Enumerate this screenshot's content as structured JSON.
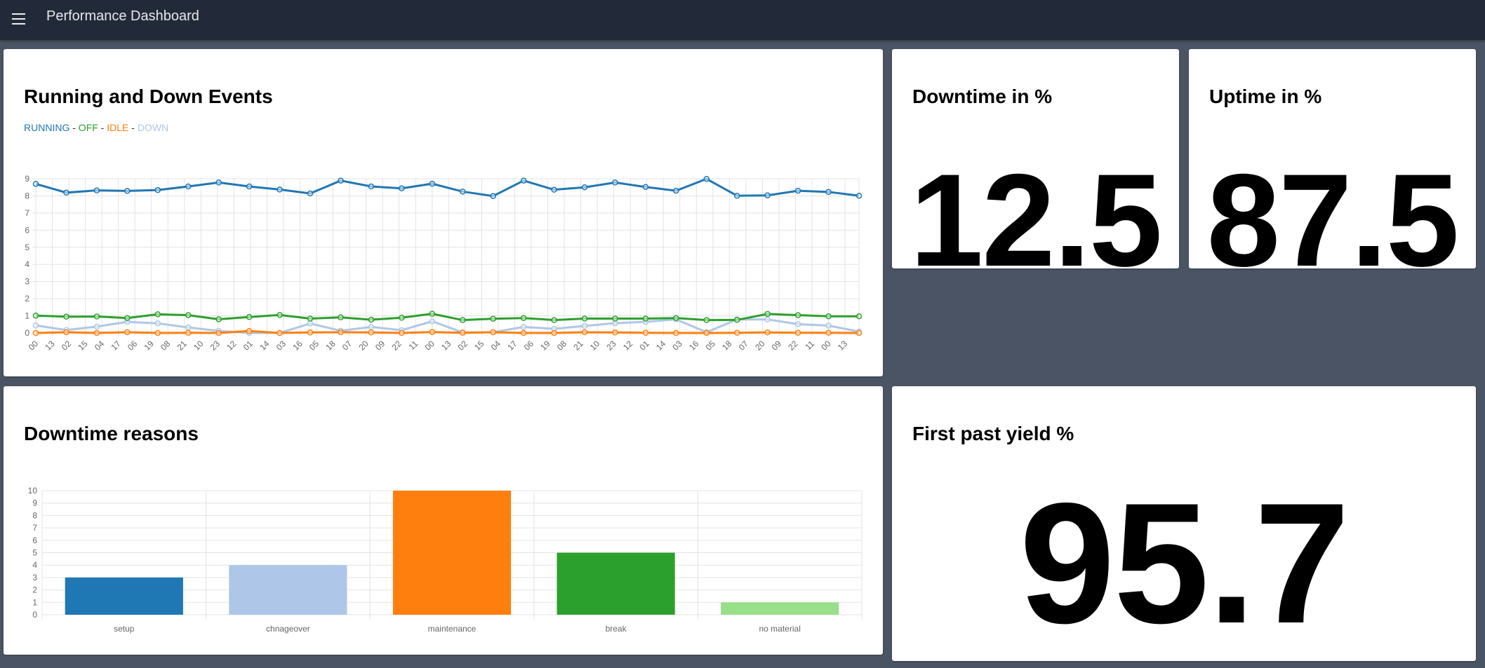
{
  "header": {
    "title": "Performance Dashboard",
    "menu_icon": "hamburger-menu-icon"
  },
  "colors": {
    "running": "#1f77b4",
    "off": "#2ca02c",
    "idle": "#ff7f0e",
    "down": "#aec7e8",
    "no_material": "#98df8a"
  },
  "events_card": {
    "title": "Running and Down Events",
    "legend": [
      {
        "label": "RUNNING",
        "color": "#1f77b4"
      },
      {
        "label": "OFF",
        "color": "#2ca02c"
      },
      {
        "label": "IDLE",
        "color": "#ff7f0e"
      },
      {
        "label": "DOWN",
        "color": "#aec7e8"
      }
    ],
    "separator": " - "
  },
  "downtime_card": {
    "title": "Downtime in %",
    "value": "12.5"
  },
  "uptime_card": {
    "title": "Uptime in %",
    "value": "87.5"
  },
  "reasons_card": {
    "title": "Downtime reasons"
  },
  "yield_card": {
    "title": "First past yield %",
    "value": "95.7"
  },
  "chart_data": [
    {
      "type": "line",
      "ylim": [
        0,
        9
      ],
      "yticks": [
        "0",
        "1",
        "2",
        "3",
        "4",
        "5",
        "6",
        "7",
        "8",
        "9"
      ],
      "grid": true,
      "x_tick_labels": [
        "00",
        "13",
        "02",
        "15",
        "04",
        "17",
        "06",
        "19",
        "08",
        "21",
        "10",
        "23",
        "12",
        "01",
        "14",
        "03",
        "16",
        "05",
        "18",
        "07",
        "20",
        "09",
        "22",
        "11",
        "00",
        "13",
        "02",
        "15",
        "04",
        "17",
        "06",
        "19",
        "08",
        "21",
        "10",
        "23",
        "12",
        "01",
        "14",
        "03",
        "16",
        "05",
        "18",
        "07",
        "20",
        "09",
        "22",
        "11",
        "00",
        "13"
      ],
      "x_tick_hours": 13,
      "point_interval_hours": 24,
      "series": [
        {
          "name": "RUNNING",
          "color": "#1f77b4",
          "values": [
            8.7,
            8.19,
            8.32,
            8.29,
            8.34,
            8.55,
            8.78,
            8.55,
            8.37,
            8.14,
            8.89,
            8.55,
            8.44,
            8.71,
            8.25,
            7.99,
            8.89,
            8.36,
            8.5,
            8.78,
            8.52,
            8.3,
            8.99,
            8.01,
            8.03,
            8.3,
            8.23,
            8.01
          ]
        },
        {
          "name": "OFF",
          "color": "#2ca02c",
          "values": [
            1.01,
            0.95,
            0.96,
            0.87,
            1.09,
            1.04,
            0.8,
            0.93,
            1.05,
            0.84,
            0.91,
            0.77,
            0.89,
            1.12,
            0.75,
            0.83,
            0.87,
            0.75,
            0.84,
            0.84,
            0.84,
            0.87,
            0.75,
            0.76,
            1.11,
            1.04,
            0.97,
            0.97
          ]
        },
        {
          "name": "IDLE",
          "color": "#ff7f0e",
          "values": [
            0,
            0.04,
            0,
            0.04,
            0,
            0.01,
            0,
            0.11,
            0,
            0.03,
            0.04,
            0.03,
            0,
            0.05,
            0.01,
            0.04,
            0,
            0,
            0.04,
            0.03,
            0.01,
            0,
            0,
            0.01,
            0.03,
            0.01,
            0.01,
            0
          ]
        },
        {
          "name": "DOWN",
          "color": "#aec7e8",
          "values": [
            0.44,
            0.17,
            0.37,
            0.65,
            0.56,
            0.32,
            0.12,
            0,
            0,
            0.55,
            0.13,
            0.35,
            0.16,
            0.68,
            0.03,
            0.04,
            0.35,
            0.24,
            0.41,
            0.57,
            0.65,
            0.79,
            0.04,
            0.79,
            0.79,
            0.51,
            0.43,
            0.08
          ]
        }
      ]
    },
    {
      "type": "bar",
      "categories": [
        "setup",
        "chnageover",
        "maintenance",
        "break",
        "no material"
      ],
      "values": [
        3,
        4,
        10,
        5,
        1
      ],
      "colors": [
        "#1f77b4",
        "#aec7e8",
        "#ff7f0e",
        "#2ca02c",
        "#98df8a"
      ],
      "ylim": [
        0,
        10
      ],
      "yticks": [
        "0",
        "1",
        "2",
        "3",
        "4",
        "5",
        "6",
        "7",
        "8",
        "9",
        "10"
      ],
      "grid": true
    }
  ]
}
